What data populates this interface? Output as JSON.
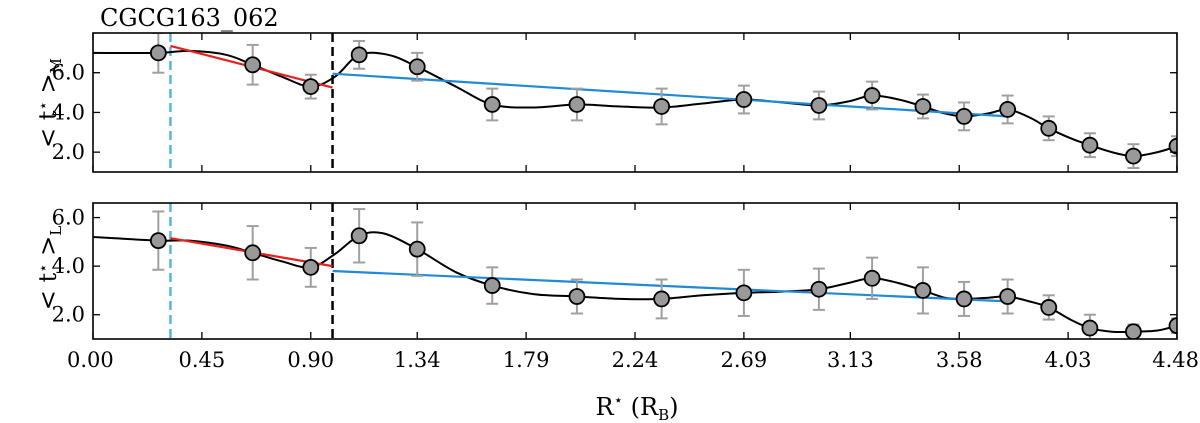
{
  "title": "CGCG163_062",
  "xlabel": {
    "main": "R",
    "sup": "⋆",
    "paren_open": " (R",
    "sub": "B",
    "paren_close": ")"
  },
  "x_ticks": [
    "0.00",
    "0.45",
    "0.90",
    "1.34",
    "1.79",
    "2.24",
    "2.69",
    "3.13",
    "3.58",
    "4.03",
    "4.48"
  ],
  "x_tick_values": [
    0.0,
    0.45,
    0.9,
    1.34,
    1.79,
    2.24,
    2.69,
    3.13,
    3.58,
    4.03,
    4.48
  ],
  "colors": {
    "fit_inner": "#e8201b",
    "fit_outer": "#1f8ad6",
    "vline_cyan": "#5ab4e0",
    "vline_black": "#000000",
    "marker_face": "#999999",
    "errorbar": "#a0a0a0",
    "curve": "#000000"
  },
  "chart_data": [
    {
      "type": "scatter",
      "ylabel": {
        "left": "< t",
        "star": "⋆",
        "right": " >",
        "sub": "M"
      },
      "xlim": [
        0.0,
        4.48
      ],
      "ylim": [
        1.0,
        8.0
      ],
      "yticks": [
        "2.0",
        "4.0",
        "6.0"
      ],
      "ytick_values": [
        2.0,
        4.0,
        6.0
      ],
      "vlines": [
        0.32,
        0.99
      ],
      "points": {
        "x": [
          0.27,
          0.66,
          0.9,
          1.1,
          1.34,
          1.65,
          2.0,
          2.35,
          2.69,
          3.0,
          3.22,
          3.43,
          3.6,
          3.78,
          3.95,
          4.12,
          4.3,
          4.48
        ],
        "y": [
          7.0,
          6.4,
          5.3,
          6.9,
          6.3,
          4.4,
          4.4,
          4.3,
          4.65,
          4.35,
          4.85,
          4.3,
          3.8,
          4.15,
          3.2,
          2.35,
          1.8,
          2.3
        ],
        "yerr": [
          1.0,
          1.0,
          0.6,
          0.7,
          0.7,
          0.8,
          0.8,
          0.9,
          0.7,
          0.7,
          0.7,
          0.6,
          0.7,
          0.7,
          0.6,
          0.6,
          0.6,
          0.5
        ]
      },
      "curve": {
        "x": [
          0.0,
          0.27,
          0.4,
          0.55,
          0.66,
          0.78,
          0.9,
          1.0,
          1.1,
          1.22,
          1.34,
          1.5,
          1.65,
          1.82,
          2.0,
          2.18,
          2.35,
          2.52,
          2.69,
          2.85,
          3.0,
          3.12,
          3.22,
          3.33,
          3.43,
          3.52,
          3.6,
          3.7,
          3.78,
          3.87,
          3.95,
          4.04,
          4.12,
          4.21,
          4.3,
          4.4,
          4.48
        ],
        "y": [
          7.0,
          7.0,
          7.1,
          6.9,
          6.4,
          5.8,
          5.3,
          5.8,
          6.9,
          6.9,
          6.3,
          5.3,
          4.4,
          4.25,
          4.4,
          4.3,
          4.25,
          4.45,
          4.65,
          4.5,
          4.35,
          4.55,
          4.85,
          4.65,
          4.3,
          3.95,
          3.8,
          3.95,
          4.15,
          3.75,
          3.2,
          2.7,
          2.35,
          2.0,
          1.8,
          2.0,
          2.3
        ]
      },
      "fits": [
        {
          "color": "red",
          "x": [
            0.32,
            0.99
          ],
          "y": [
            7.35,
            5.25
          ]
        },
        {
          "color": "blue",
          "x": [
            0.99,
            3.78
          ],
          "y": [
            5.95,
            3.8
          ]
        }
      ]
    },
    {
      "type": "scatter",
      "ylabel": {
        "left": "< t",
        "star": "⋆",
        "right": " >",
        "sub": "L"
      },
      "xlim": [
        0.0,
        4.48
      ],
      "ylim": [
        1.0,
        6.6
      ],
      "yticks": [
        "2.0",
        "4.0",
        "6.0"
      ],
      "ytick_values": [
        2.0,
        4.0,
        6.0
      ],
      "vlines": [
        0.32,
        0.99
      ],
      "points": {
        "x": [
          0.27,
          0.66,
          0.9,
          1.1,
          1.34,
          1.65,
          2.0,
          2.35,
          2.69,
          3.0,
          3.22,
          3.43,
          3.6,
          3.78,
          3.95,
          4.12,
          4.3,
          4.48
        ],
        "y": [
          5.05,
          4.55,
          3.95,
          5.25,
          4.7,
          3.2,
          2.75,
          2.65,
          2.9,
          3.05,
          3.5,
          3.0,
          2.65,
          2.75,
          2.3,
          1.45,
          1.3,
          1.55
        ],
        "yerr": [
          1.2,
          1.1,
          0.8,
          1.1,
          1.1,
          0.75,
          0.7,
          0.8,
          0.95,
          0.85,
          0.85,
          0.95,
          0.7,
          0.7,
          0.5,
          0.55,
          0.3,
          0.3
        ]
      },
      "curve": {
        "x": [
          0.0,
          0.27,
          0.4,
          0.55,
          0.66,
          0.78,
          0.9,
          1.0,
          1.1,
          1.2,
          1.34,
          1.5,
          1.65,
          1.82,
          2.0,
          2.18,
          2.35,
          2.52,
          2.69,
          2.85,
          3.0,
          3.12,
          3.22,
          3.33,
          3.43,
          3.52,
          3.6,
          3.7,
          3.78,
          3.87,
          3.95,
          4.04,
          4.12,
          4.21,
          4.3,
          4.4,
          4.48
        ],
        "y": [
          5.2,
          5.05,
          5.05,
          4.85,
          4.55,
          4.2,
          3.95,
          4.5,
          5.25,
          5.35,
          4.7,
          3.75,
          3.2,
          2.85,
          2.75,
          2.65,
          2.65,
          2.8,
          2.9,
          2.95,
          3.05,
          3.3,
          3.5,
          3.3,
          3.0,
          2.7,
          2.65,
          2.7,
          2.75,
          2.55,
          2.3,
          1.8,
          1.45,
          1.3,
          1.3,
          1.35,
          1.55
        ]
      },
      "fits": [
        {
          "color": "red",
          "x": [
            0.32,
            0.99
          ],
          "y": [
            5.15,
            4.0
          ]
        },
        {
          "color": "blue",
          "x": [
            0.99,
            3.78
          ],
          "y": [
            3.8,
            2.55
          ]
        }
      ]
    }
  ]
}
